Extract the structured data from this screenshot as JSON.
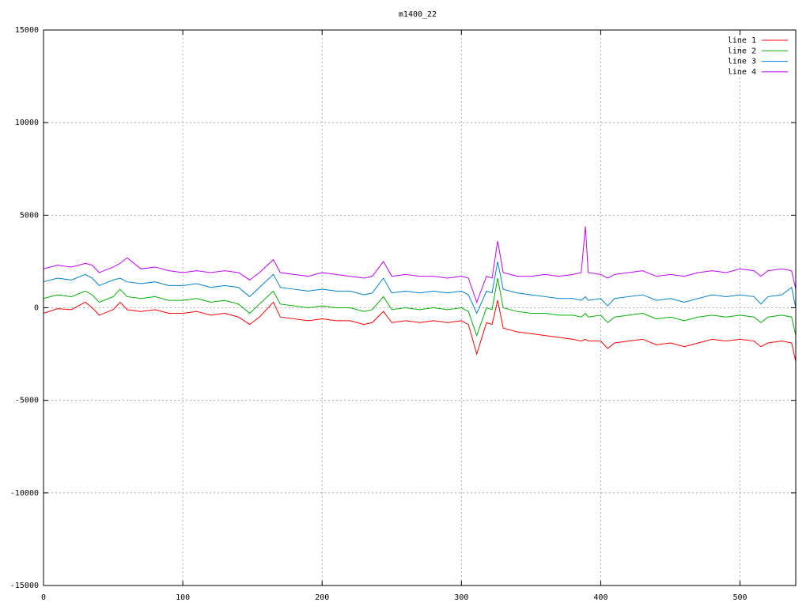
{
  "chart_data": {
    "type": "line",
    "title": "m1400_22",
    "x": [
      0,
      10,
      20,
      30,
      35,
      40,
      50,
      55,
      60,
      70,
      80,
      90,
      100,
      110,
      120,
      130,
      140,
      148,
      155,
      165,
      170,
      180,
      190,
      200,
      210,
      220,
      230,
      236,
      244,
      250,
      260,
      270,
      280,
      290,
      300,
      305,
      311,
      318,
      322,
      326,
      330,
      340,
      350,
      360,
      370,
      380,
      386,
      389,
      391,
      400,
      405,
      410,
      420,
      430,
      440,
      450,
      460,
      470,
      480,
      490,
      500,
      510,
      515,
      520,
      530,
      537,
      540
    ],
    "series": [
      {
        "name": "line 1",
        "color": "#ff0000",
        "values": [
          -300,
          -50,
          -100,
          300,
          0,
          -400,
          -100,
          300,
          -100,
          -200,
          -100,
          -300,
          -300,
          -200,
          -400,
          -300,
          -500,
          -900,
          -500,
          300,
          -500,
          -600,
          -700,
          -600,
          -700,
          -700,
          -900,
          -800,
          -200,
          -800,
          -700,
          -800,
          -700,
          -800,
          -700,
          -900,
          -2500,
          -800,
          -900,
          400,
          -1100,
          -1300,
          -1400,
          -1500,
          -1600,
          -1700,
          -1800,
          -1700,
          -1800,
          -1800,
          -2200,
          -1900,
          -1800,
          -1700,
          -2000,
          -1900,
          -2100,
          -1900,
          -1700,
          -1800,
          -1700,
          -1800,
          -2100,
          -1900,
          -1800,
          -1900,
          -2900
        ]
      },
      {
        "name": "line 2",
        "color": "#00b000",
        "values": [
          500,
          700,
          600,
          900,
          700,
          300,
          600,
          1000,
          600,
          500,
          600,
          400,
          400,
          500,
          300,
          400,
          200,
          -300,
          200,
          900,
          200,
          100,
          0,
          100,
          0,
          0,
          -200,
          -100,
          600,
          -100,
          0,
          -100,
          0,
          -100,
          0,
          -200,
          -1500,
          0,
          -100,
          1600,
          0,
          -200,
          -300,
          -300,
          -400,
          -400,
          -500,
          -300,
          -500,
          -400,
          -800,
          -500,
          -400,
          -300,
          -600,
          -500,
          -700,
          -500,
          -400,
          -500,
          -400,
          -500,
          -800,
          -500,
          -400,
          -500,
          -1500
        ]
      },
      {
        "name": "line 3",
        "color": "#0080d0",
        "values": [
          1400,
          1600,
          1500,
          1800,
          1600,
          1200,
          1500,
          1600,
          1400,
          1300,
          1400,
          1200,
          1200,
          1300,
          1100,
          1200,
          1100,
          600,
          1100,
          1800,
          1100,
          1000,
          900,
          1000,
          900,
          900,
          700,
          800,
          1600,
          800,
          900,
          800,
          900,
          800,
          900,
          700,
          -300,
          900,
          800,
          2500,
          1000,
          800,
          700,
          600,
          500,
          500,
          400,
          600,
          400,
          500,
          100,
          500,
          600,
          700,
          400,
          500,
          300,
          500,
          700,
          600,
          700,
          600,
          200,
          600,
          700,
          1100,
          0
        ]
      },
      {
        "name": "line 4",
        "color": "#c000ff",
        "values": [
          2100,
          2300,
          2200,
          2400,
          2300,
          1900,
          2200,
          2400,
          2700,
          2100,
          2200,
          2000,
          1900,
          2000,
          1900,
          2000,
          1900,
          1500,
          1900,
          2600,
          1900,
          1800,
          1700,
          1900,
          1800,
          1700,
          1600,
          1700,
          2500,
          1700,
          1800,
          1700,
          1700,
          1600,
          1700,
          1600,
          300,
          1700,
          1600,
          3600,
          1900,
          1700,
          1700,
          1800,
          1700,
          1800,
          1900,
          4400,
          1900,
          1800,
          1600,
          1800,
          1900,
          2000,
          1700,
          1800,
          1700,
          1900,
          2000,
          1900,
          2100,
          2000,
          1700,
          2000,
          2100,
          2000,
          1000
        ]
      }
    ],
    "xlim": [
      0,
      540
    ],
    "xticks": [
      0,
      100,
      200,
      300,
      400,
      500
    ],
    "ylim": [
      -15000,
      15000
    ],
    "yticks": [
      -15000,
      -10000,
      -5000,
      0,
      5000,
      10000,
      15000
    ],
    "grid": true,
    "legend": "top-right"
  }
}
